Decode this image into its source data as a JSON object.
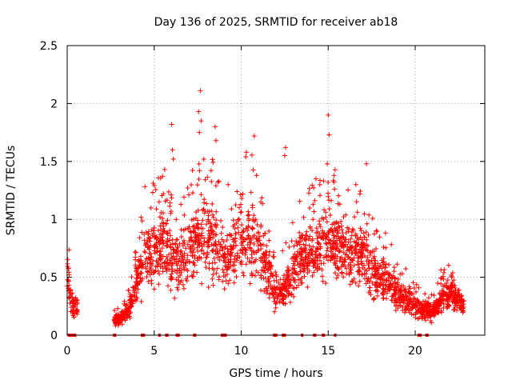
{
  "chart_data": {
    "type": "scatter",
    "title": "Day 136 of 2025, SRMTID for receiver ab18",
    "xlabel": "GPS time / hours",
    "ylabel": "SRMTID / TECUs",
    "xlim": [
      0,
      24
    ],
    "ylim": [
      0,
      2.5
    ],
    "x_ticks": [
      0,
      5,
      10,
      15,
      20
    ],
    "x_tick_labels": [
      "0",
      "5",
      "10",
      "15",
      "20"
    ],
    "y_ticks": [
      0,
      0.5,
      1,
      1.5,
      2,
      2.5
    ],
    "y_tick_labels": [
      "0",
      "0.5",
      "1",
      "1.5",
      "2",
      "2.5"
    ],
    "grid": true,
    "marker": "+",
    "series": [
      {
        "name": "SRMTID",
        "color": "#ff0000",
        "profile": [
          [
            0.0,
            0.5
          ],
          [
            0.3,
            0.25
          ],
          [
            0.6,
            0.2
          ],
          [
            2.7,
            0.12
          ],
          [
            3.2,
            0.15
          ],
          [
            3.6,
            0.25
          ],
          [
            4.0,
            0.45
          ],
          [
            4.5,
            0.7
          ],
          [
            5.0,
            0.7
          ],
          [
            5.5,
            0.75
          ],
          [
            6.0,
            0.65
          ],
          [
            6.5,
            0.6
          ],
          [
            7.0,
            0.75
          ],
          [
            7.5,
            0.85
          ],
          [
            8.0,
            0.85
          ],
          [
            8.5,
            0.8
          ],
          [
            9.0,
            0.65
          ],
          [
            9.5,
            0.7
          ],
          [
            10.0,
            0.8
          ],
          [
            10.5,
            0.85
          ],
          [
            11.0,
            0.75
          ],
          [
            11.5,
            0.55
          ],
          [
            12.0,
            0.35
          ],
          [
            12.5,
            0.4
          ],
          [
            13.0,
            0.55
          ],
          [
            13.5,
            0.7
          ],
          [
            14.0,
            0.7
          ],
          [
            14.5,
            0.75
          ],
          [
            15.0,
            0.8
          ],
          [
            15.5,
            0.75
          ],
          [
            16.0,
            0.7
          ],
          [
            16.5,
            0.7
          ],
          [
            17.0,
            0.7
          ],
          [
            17.5,
            0.55
          ],
          [
            18.0,
            0.5
          ],
          [
            18.5,
            0.45
          ],
          [
            19.0,
            0.35
          ],
          [
            19.5,
            0.3
          ],
          [
            20.0,
            0.25
          ],
          [
            20.5,
            0.2
          ],
          [
            21.0,
            0.2
          ],
          [
            21.5,
            0.3
          ],
          [
            22.0,
            0.35
          ],
          [
            22.5,
            0.3
          ],
          [
            22.8,
            0.25
          ]
        ],
        "gaps": [
          [
            0.6,
            2.7
          ]
        ],
        "outliers": [
          [
            7.65,
            2.11
          ],
          [
            7.55,
            1.93
          ],
          [
            7.7,
            1.85
          ],
          [
            6.0,
            1.82
          ],
          [
            8.5,
            1.8
          ],
          [
            15.0,
            1.9
          ],
          [
            15.05,
            1.73
          ],
          [
            10.75,
            1.72
          ],
          [
            12.55,
            1.62
          ],
          [
            6.05,
            1.6
          ],
          [
            7.6,
            1.75
          ],
          [
            8.55,
            1.68
          ],
          [
            10.3,
            1.58
          ],
          [
            12.5,
            1.55
          ],
          [
            14.95,
            1.48
          ],
          [
            17.2,
            1.48
          ],
          [
            5.6,
            1.43
          ],
          [
            6.1,
            1.52
          ],
          [
            7.85,
            1.52
          ],
          [
            9.25,
            1.3
          ]
        ],
        "zero_markers": [
          0.1,
          0.15,
          0.3,
          0.45,
          2.7,
          2.75,
          4.3,
          4.4,
          5.3,
          5.7,
          5.75,
          6.3,
          6.4,
          7.3,
          7.35,
          8.9,
          9.0,
          9.05,
          9.1,
          11.9,
          12.0,
          12.4,
          12.5,
          13.5,
          14.2,
          14.25,
          14.7,
          14.75,
          15.4,
          20.2,
          20.3,
          20.65,
          20.7
        ]
      }
    ]
  }
}
